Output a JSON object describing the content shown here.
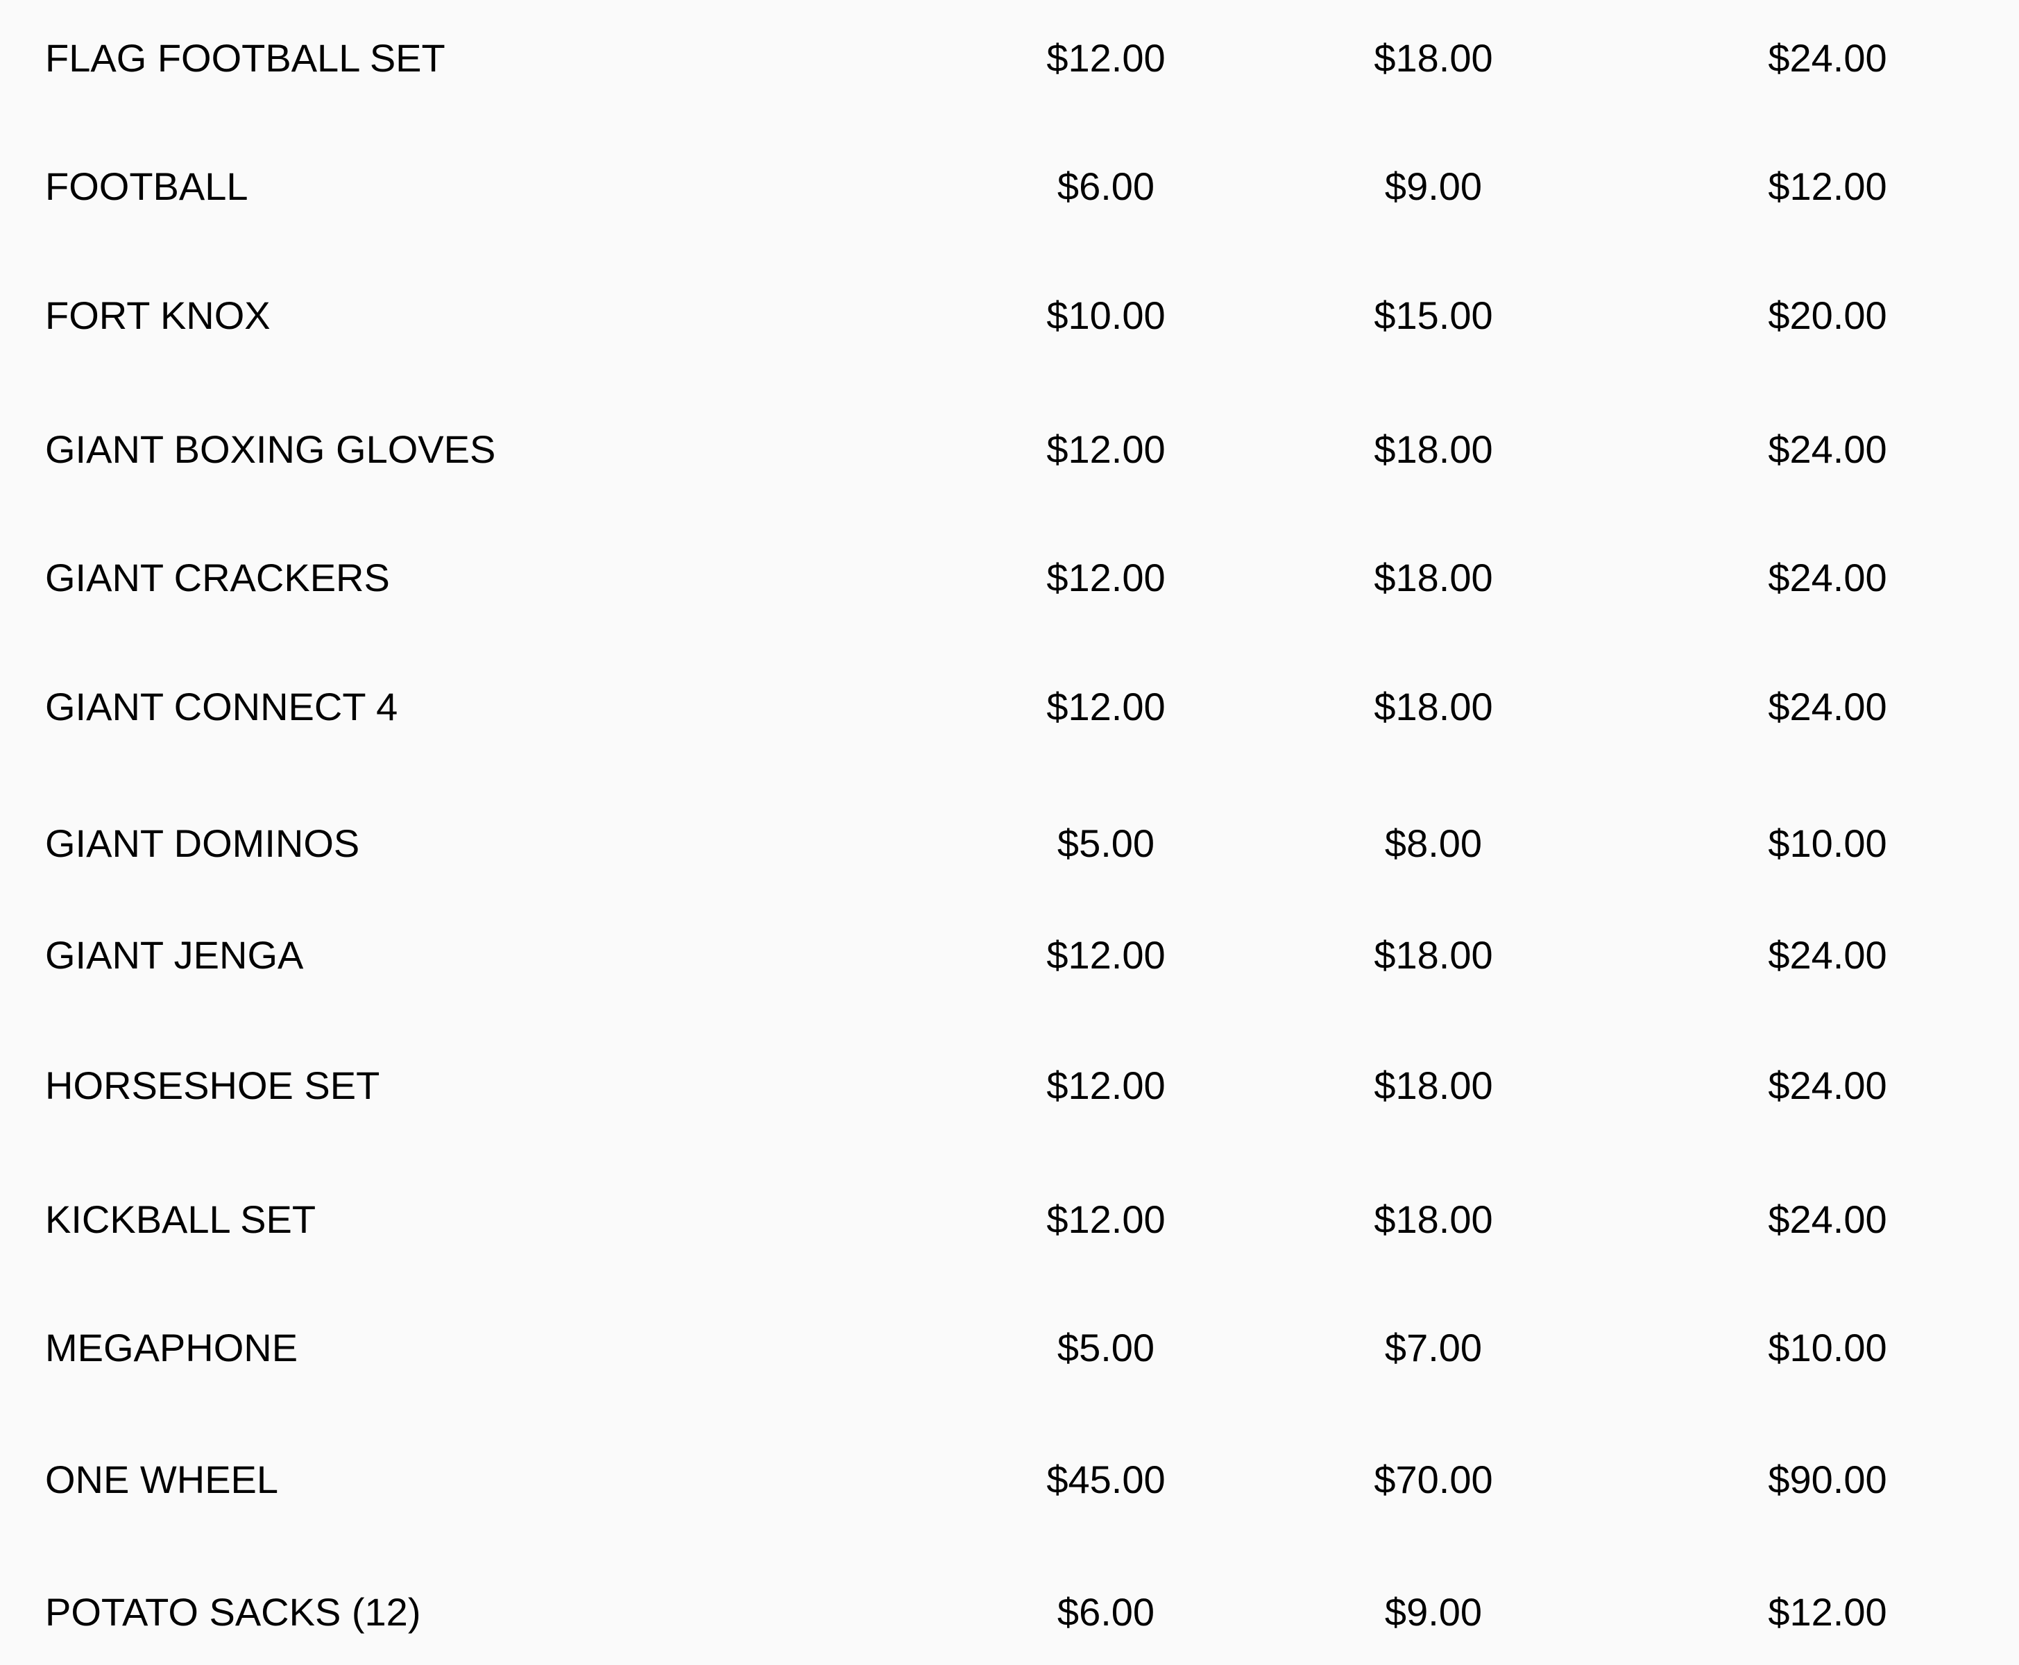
{
  "items": [
    {
      "name": "FLAG FOOTBALL SET",
      "prices": [
        "$12.00",
        "$18.00",
        "$24.00"
      ]
    },
    {
      "name": "FOOTBALL",
      "prices": [
        "$6.00",
        "$9.00",
        "$12.00"
      ]
    },
    {
      "name": "FORT KNOX",
      "prices": [
        "$10.00",
        "$15.00",
        "$20.00"
      ]
    },
    {
      "name": "GIANT BOXING GLOVES",
      "prices": [
        "$12.00",
        "$18.00",
        "$24.00"
      ]
    },
    {
      "name": "GIANT CRACKERS",
      "prices": [
        "$12.00",
        "$18.00",
        "$24.00"
      ]
    },
    {
      "name": "GIANT CONNECT 4",
      "prices": [
        "$12.00",
        "$18.00",
        "$24.00"
      ]
    },
    {
      "name": "GIANT DOMINOS",
      "prices": [
        "$5.00",
        "$8.00",
        "$10.00"
      ]
    },
    {
      "name": "GIANT JENGA",
      "prices": [
        "$12.00",
        "$18.00",
        "$24.00"
      ]
    },
    {
      "name": "HORSESHOE SET",
      "prices": [
        "$12.00",
        "$18.00",
        "$24.00"
      ]
    },
    {
      "name": "KICKBALL SET",
      "prices": [
        "$12.00",
        "$18.00",
        "$24.00"
      ]
    },
    {
      "name": "MEGAPHONE",
      "prices": [
        "$5.00",
        "$7.00",
        "$10.00"
      ]
    },
    {
      "name": "ONE WHEEL",
      "prices": [
        "$45.00",
        "$70.00",
        "$90.00"
      ]
    },
    {
      "name": "POTATO SACKS (12)",
      "prices": [
        "$6.00",
        "$9.00",
        "$12.00"
      ]
    }
  ]
}
